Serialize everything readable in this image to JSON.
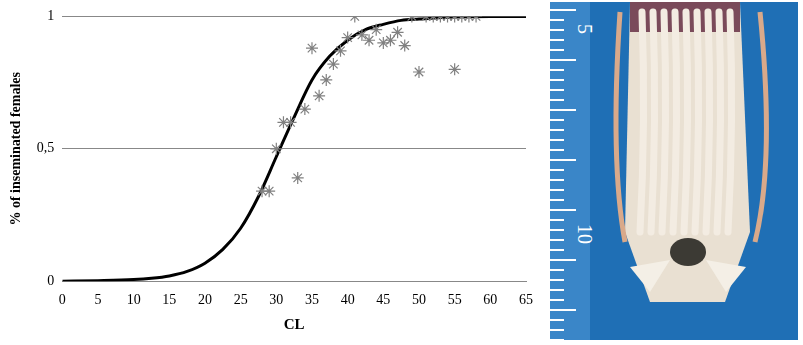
{
  "chart_data": {
    "type": "scatter",
    "x_label": "CL",
    "y_label": "% of inseminated females",
    "xlim": [
      0,
      65
    ],
    "xticks": [
      0,
      5,
      10,
      15,
      20,
      25,
      30,
      35,
      40,
      45,
      50,
      55,
      60,
      65
    ],
    "ylim": [
      0,
      1
    ],
    "yticks": [
      0,
      {
        "value": 0.5,
        "label": "0,5"
      },
      1
    ],
    "grid": "y",
    "series": [
      {
        "type": "scatter",
        "color": "#808080",
        "marker": "star",
        "x": [
          28,
          29,
          30,
          31,
          32,
          33,
          34,
          35,
          36,
          37,
          38,
          39,
          40,
          41,
          42,
          43,
          44,
          45,
          46,
          47,
          48,
          49,
          50,
          51,
          52,
          53,
          54,
          55,
          55,
          56,
          57,
          58
        ],
        "values": [
          0.34,
          0.34,
          0.5,
          0.6,
          0.6,
          0.39,
          0.65,
          0.88,
          0.7,
          0.76,
          0.82,
          0.87,
          0.92,
          1.0,
          0.93,
          0.91,
          0.95,
          0.9,
          0.91,
          0.94,
          0.89,
          1.0,
          0.79,
          1.0,
          1.0,
          1.0,
          1.0,
          0.8,
          1.0,
          1.0,
          1.0,
          1.0
        ]
      },
      {
        "type": "line",
        "color": "#000000",
        "line_style": "solid",
        "x": [
          0,
          5,
          10,
          12.5,
          15,
          17.5,
          20,
          22.5,
          25,
          27.5,
          30,
          32.5,
          35,
          37.5,
          40,
          42.5,
          45,
          47.5,
          50,
          55,
          60,
          65
        ],
        "values": [
          0,
          0.002,
          0.006,
          0.011,
          0.02,
          0.037,
          0.068,
          0.12,
          0.2,
          0.32,
          0.47,
          0.62,
          0.76,
          0.85,
          0.91,
          0.95,
          0.97,
          0.985,
          0.99,
          0.998,
          1,
          1
        ]
      }
    ]
  },
  "photo": {
    "ruler_labels": [
      "5",
      "10"
    ]
  }
}
